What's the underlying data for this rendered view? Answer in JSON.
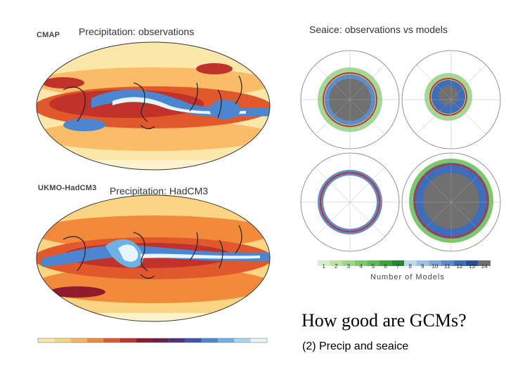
{
  "panels": {
    "cmap": {
      "logo": "CMAP",
      "label": "Precipitation: observations"
    },
    "hadcm3": {
      "logo": "UKMO-HadCM3",
      "label": "Precipitation: HadCM3"
    },
    "seaice": {
      "label": "Seaice: observations vs models",
      "legend_values": [
        "1",
        "2",
        "3",
        "4",
        "5",
        "6",
        "7",
        "8",
        "9",
        "10",
        "11",
        "12",
        "13",
        "14"
      ],
      "legend_colors": [
        "#d7efc9",
        "#b8e3a5",
        "#9dd58a",
        "#7fc76c",
        "#5fb653",
        "#3ea33f",
        "#228a32",
        "#bfd6ef",
        "#9ec1e6",
        "#7ea8da",
        "#5e8ccb",
        "#3f6db9",
        "#2a4f9e",
        "#707070"
      ],
      "legend_caption": "Number of Models"
    },
    "precip_colorbar": {
      "colors": [
        "#fbe7a9",
        "#fcd584",
        "#f9b45c",
        "#f28a3c",
        "#e0582b",
        "#c0322a",
        "#8e1c2a",
        "#6a1f4d",
        "#4c2f87",
        "#3c56b0",
        "#4c86d1",
        "#6eb2e4",
        "#a6d7ef",
        "#e6f4fb"
      ]
    }
  },
  "slide": {
    "title": "How good are GCMs?",
    "subtitle": "(2) Precip and seaice"
  }
}
